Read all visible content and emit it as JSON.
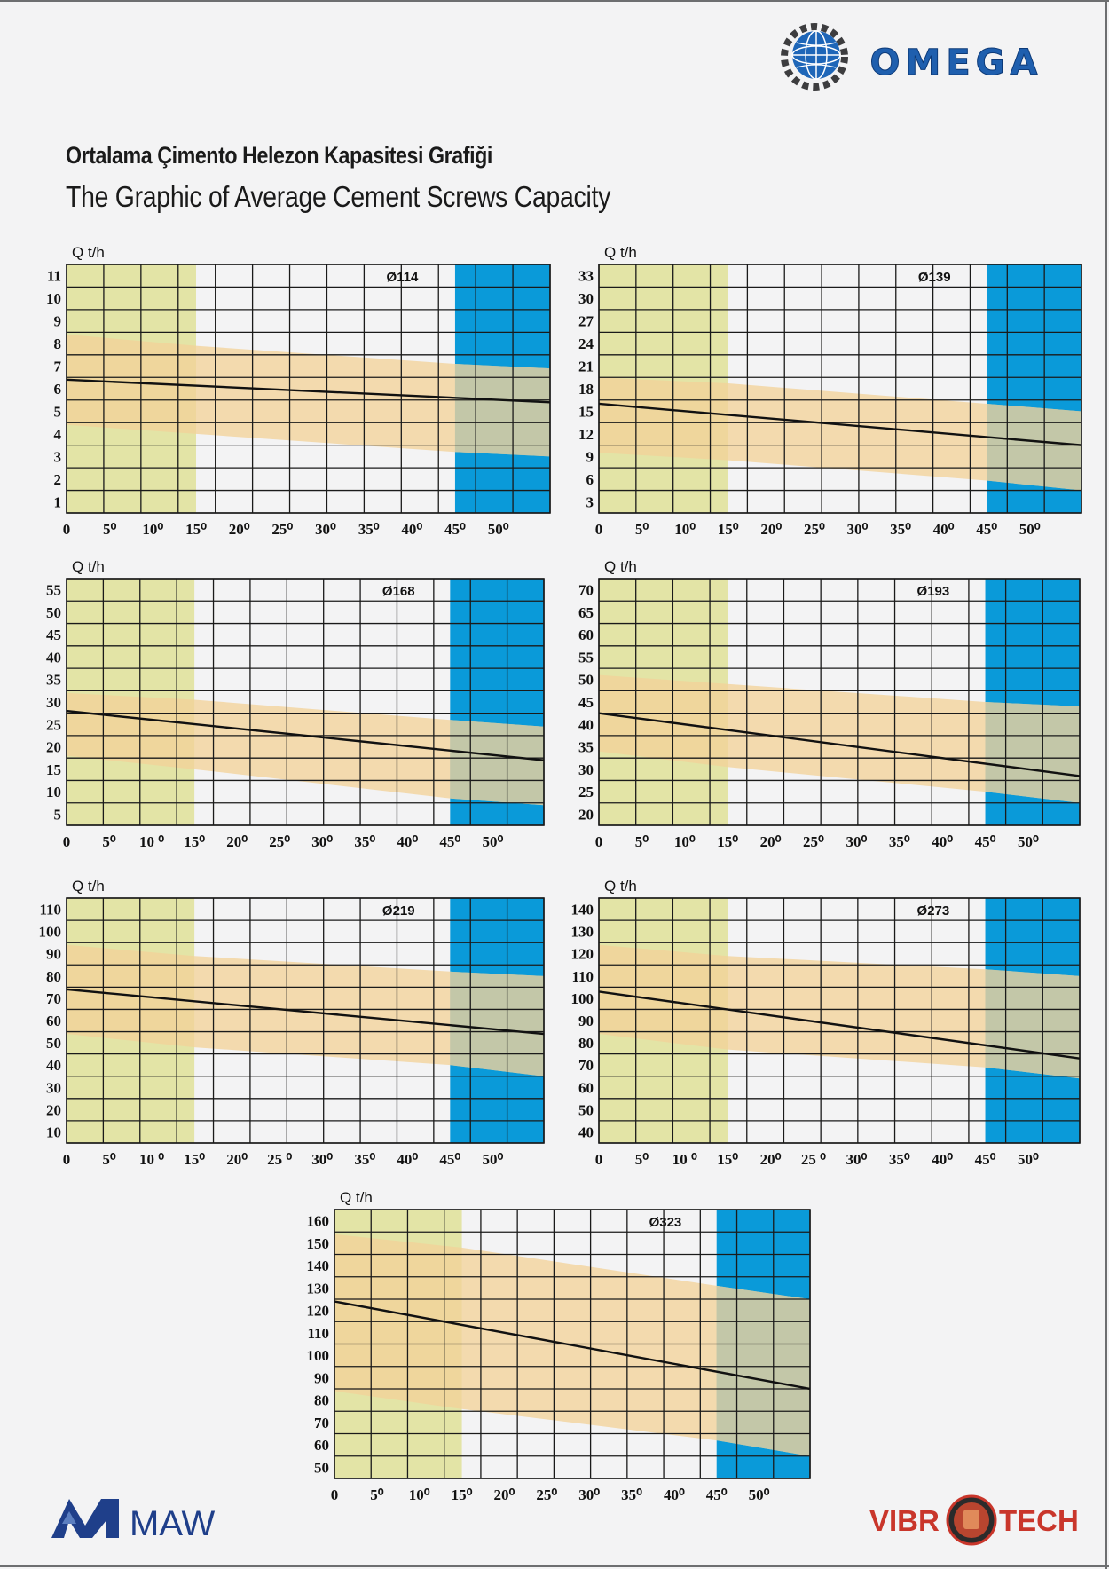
{
  "page": {
    "title_tr": "Ortalama Çimento Helezon Kapasitesi Grafiği",
    "title_en": "The Graphic of Average Cement Screws Capacity"
  },
  "logos": {
    "omega": {
      "text": "OMEGA",
      "color": "#1f5fae"
    },
    "maw": {
      "text": "MAW",
      "color": "#1f3f8a"
    },
    "vibrotech": {
      "text_left": "VIBR",
      "text_right": "TECH",
      "color": "#c9362b"
    }
  },
  "colors": {
    "yellow_zone": "#e3e4a6",
    "blue_zone": "#0a9ad9",
    "band": "#f2d29a",
    "band_over_blue": "#c3c7a8",
    "grid": "#1a1a1a",
    "trend_line": "#111111"
  },
  "chart_data": [
    {
      "type": "line",
      "name": "Ø114",
      "ylabel": "Q t/h",
      "xlabel": "",
      "xticks": [
        "0",
        "5⁰",
        "10⁰",
        "15⁰",
        "20⁰",
        "25⁰",
        "30⁰",
        "35⁰",
        "40⁰",
        "45⁰",
        "50⁰"
      ],
      "yticks": [
        "1",
        "2",
        "3",
        "4",
        "5",
        "6",
        "7",
        "8",
        "9",
        "10",
        "11"
      ],
      "xlim": [
        0,
        56
      ],
      "ylim": [
        0.5,
        11.5
      ],
      "zones": {
        "yellow": [
          0,
          15
        ],
        "blue": [
          45,
          56
        ]
      },
      "series": [
        {
          "name": "average",
          "x": [
            0,
            56
          ],
          "y": [
            6.4,
            5.4
          ]
        },
        {
          "name": "band_upper",
          "x": [
            0,
            15,
            45,
            56
          ],
          "y": [
            8.4,
            7.9,
            7.1,
            6.9
          ]
        },
        {
          "name": "band_lower",
          "x": [
            0,
            15,
            45,
            56
          ],
          "y": [
            4.4,
            4.0,
            3.2,
            3.0
          ]
        }
      ]
    },
    {
      "type": "line",
      "name": "Ø139",
      "ylabel": "Q t/h",
      "xlabel": "",
      "xticks": [
        "0",
        "5⁰",
        "10⁰",
        "15⁰",
        "20⁰",
        "25⁰",
        "30⁰",
        "35⁰",
        "40⁰",
        "45⁰",
        "50⁰"
      ],
      "yticks": [
        "3",
        "6",
        "9",
        "12",
        "15",
        "18",
        "21",
        "24",
        "27",
        "30",
        "33"
      ],
      "xlim": [
        0,
        56
      ],
      "ylim": [
        1.5,
        34.5
      ],
      "zones": {
        "yellow": [
          0,
          15
        ],
        "blue": [
          45,
          56
        ]
      },
      "series": [
        {
          "name": "average",
          "x": [
            0,
            56
          ],
          "y": [
            16.0,
            10.5
          ]
        },
        {
          "name": "band_upper",
          "x": [
            0,
            15,
            45,
            56
          ],
          "y": [
            19.5,
            18.7,
            16.0,
            15.0
          ]
        },
        {
          "name": "band_lower",
          "x": [
            0,
            15,
            45,
            56
          ],
          "y": [
            9.5,
            8.5,
            5.8,
            4.5
          ]
        }
      ]
    },
    {
      "type": "line",
      "name": "Ø168",
      "ylabel": "Q t/h",
      "xlabel": "",
      "xticks": [
        "0",
        "5⁰",
        "10 ⁰",
        "15⁰",
        "20⁰",
        "25⁰",
        "30⁰",
        "35⁰",
        "40⁰",
        "45⁰",
        "50⁰"
      ],
      "yticks": [
        "5",
        "10",
        "15",
        "20",
        "25",
        "30",
        "35",
        "40",
        "45",
        "50",
        "55"
      ],
      "xlim": [
        0,
        56
      ],
      "ylim": [
        2.5,
        57.5
      ],
      "zones": {
        "yellow": [
          0,
          15
        ],
        "blue": [
          45,
          56
        ]
      },
      "series": [
        {
          "name": "average",
          "x": [
            0,
            56
          ],
          "y": [
            28.0,
            17.0
          ]
        },
        {
          "name": "band_upper",
          "x": [
            0,
            15,
            45,
            56
          ],
          "y": [
            32.0,
            30.5,
            26.0,
            24.5
          ]
        },
        {
          "name": "band_lower",
          "x": [
            0,
            15,
            45,
            56
          ],
          "y": [
            18.0,
            15.0,
            8.5,
            7.0
          ]
        }
      ]
    },
    {
      "type": "line",
      "name": "Ø193",
      "ylabel": "Q t/h",
      "xlabel": "",
      "xticks": [
        "0",
        "5⁰",
        "10⁰",
        "15⁰",
        "20⁰",
        "25⁰",
        "30⁰",
        "35⁰",
        "40⁰",
        "45⁰",
        "50⁰"
      ],
      "yticks": [
        "20",
        "25",
        "30",
        "35",
        "40",
        "45",
        "50",
        "55",
        "60",
        "65",
        "70"
      ],
      "xlim": [
        0,
        56
      ],
      "ylim": [
        17.5,
        72.5
      ],
      "zones": {
        "yellow": [
          0,
          15
        ],
        "blue": [
          45,
          56
        ]
      },
      "series": [
        {
          "name": "average",
          "x": [
            0,
            56
          ],
          "y": [
            42.5,
            28.5
          ]
        },
        {
          "name": "band_upper",
          "x": [
            0,
            15,
            45,
            56
          ],
          "y": [
            51.0,
            49.0,
            45.0,
            44.0
          ]
        },
        {
          "name": "band_lower",
          "x": [
            0,
            15,
            45,
            56
          ],
          "y": [
            34.0,
            30.5,
            25.0,
            22.5
          ]
        }
      ]
    },
    {
      "type": "line",
      "name": "Ø219",
      "ylabel": "Q t/h",
      "xlabel": "",
      "xticks": [
        "0",
        "5⁰",
        "10 ⁰",
        "15⁰",
        "20⁰",
        "25 ⁰",
        "30⁰",
        "35⁰",
        "40⁰",
        "45⁰",
        "50⁰"
      ],
      "yticks": [
        "10",
        "20",
        "30",
        "40",
        "50",
        "60",
        "70",
        "80",
        "90",
        "100",
        "110"
      ],
      "xlim": [
        0,
        56
      ],
      "ylim": [
        5,
        115
      ],
      "zones": {
        "yellow": [
          0,
          15
        ],
        "blue": [
          45,
          56
        ]
      },
      "series": [
        {
          "name": "average",
          "x": [
            0,
            56
          ],
          "y": [
            74.0,
            54.0
          ]
        },
        {
          "name": "band_upper",
          "x": [
            0,
            15,
            45,
            56
          ],
          "y": [
            94.0,
            89.0,
            82.0,
            80.0
          ]
        },
        {
          "name": "band_lower",
          "x": [
            0,
            15,
            45,
            56
          ],
          "y": [
            54.0,
            48.0,
            40.0,
            35.0
          ]
        }
      ]
    },
    {
      "type": "line",
      "name": "Ø273",
      "ylabel": "Q t/h",
      "xlabel": "",
      "xticks": [
        "0",
        "5⁰",
        "10 ⁰",
        "15⁰",
        "20⁰",
        "25 ⁰",
        "30⁰",
        "35⁰",
        "40⁰",
        "45⁰",
        "50⁰"
      ],
      "yticks": [
        "40",
        "50",
        "60",
        "70",
        "80",
        "90",
        "100",
        "110",
        "120",
        "130",
        "140"
      ],
      "xlim": [
        0,
        56
      ],
      "ylim": [
        35,
        145
      ],
      "zones": {
        "yellow": [
          0,
          15
        ],
        "blue": [
          45,
          56
        ]
      },
      "series": [
        {
          "name": "average",
          "x": [
            0,
            56
          ],
          "y": [
            103.0,
            73.0
          ]
        },
        {
          "name": "band_upper",
          "x": [
            0,
            15,
            45,
            56
          ],
          "y": [
            124.0,
            119.0,
            113.0,
            110.0
          ]
        },
        {
          "name": "band_lower",
          "x": [
            0,
            15,
            45,
            56
          ],
          "y": [
            84.0,
            77.0,
            69.0,
            64.0
          ]
        }
      ]
    },
    {
      "type": "line",
      "name": "Ø323",
      "ylabel": "Q t/h",
      "xlabel": "",
      "xticks": [
        "0",
        "5⁰",
        "10⁰",
        "15⁰",
        "20⁰",
        "25⁰",
        "30⁰",
        "35⁰",
        "40⁰",
        "45⁰",
        "50⁰"
      ],
      "yticks": [
        "50",
        "60",
        "70",
        "80",
        "90",
        "100",
        "110",
        "120",
        "130",
        "140",
        "150",
        "160"
      ],
      "xlim": [
        0,
        56
      ],
      "ylim": [
        45,
        165
      ],
      "zones": {
        "yellow": [
          0,
          15
        ],
        "blue": [
          45,
          56
        ]
      },
      "series": [
        {
          "name": "average",
          "x": [
            0,
            56
          ],
          "y": [
            124.0,
            85.0
          ]
        },
        {
          "name": "band_upper",
          "x": [
            0,
            15,
            45,
            56
          ],
          "y": [
            154.0,
            148.0,
            131.0,
            125.0
          ]
        },
        {
          "name": "band_lower",
          "x": [
            0,
            15,
            45,
            56
          ],
          "y": [
            84.0,
            76.0,
            62.0,
            55.0
          ]
        }
      ]
    }
  ]
}
